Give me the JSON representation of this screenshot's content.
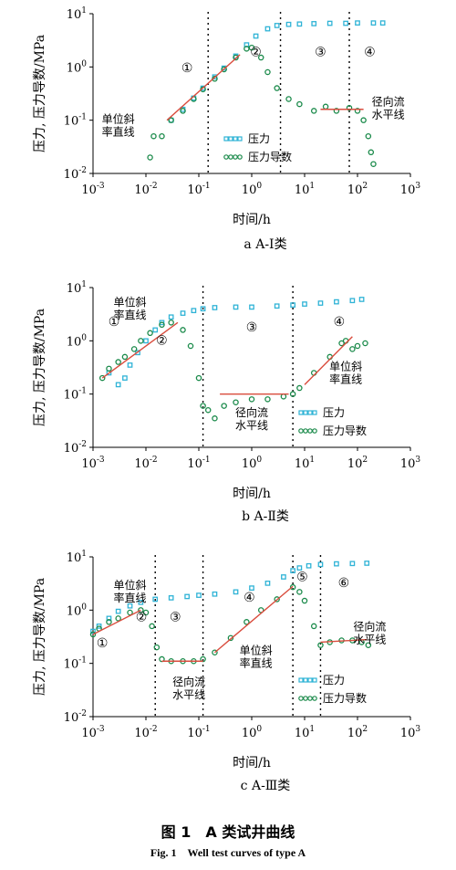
{
  "caption": {
    "zh": "图 1　A 类试井曲线",
    "en": "Fig. 1　Well test curves of type A"
  },
  "colors": {
    "pressure": "#2fb3d6",
    "derivative": "#1a8a4a",
    "fit_line": "#d94c3d",
    "divider": "#000000"
  },
  "chart_data": [
    {
      "type": "scatter",
      "title": "a A-Ⅰ类",
      "xlabel": "时间/h",
      "ylabel": "压力, 压力导数/MPa",
      "xscale": "log",
      "yscale": "log",
      "xlim": [
        0.001,
        1000
      ],
      "ylim": [
        0.01,
        10
      ],
      "xticks": [
        "10-3",
        "10-2",
        "10-1",
        "100",
        "101",
        "102",
        "103"
      ],
      "yticks": [
        "10-2",
        "10-1",
        "100",
        "101"
      ],
      "legend": {
        "position": "center-right",
        "entries": [
          "压力",
          "压力导数"
        ]
      },
      "series": [
        {
          "name": "压力",
          "marker": "square",
          "points": [
            [
              0.03,
              0.1
            ],
            [
              0.05,
              0.16
            ],
            [
              0.08,
              0.26
            ],
            [
              0.12,
              0.4
            ],
            [
              0.2,
              0.65
            ],
            [
              0.3,
              0.95
            ],
            [
              0.5,
              1.6
            ],
            [
              0.8,
              2.6
            ],
            [
              1.2,
              3.8
            ],
            [
              2,
              5.2
            ],
            [
              3,
              6
            ],
            [
              5,
              6.3
            ],
            [
              8,
              6.4
            ],
            [
              15,
              6.5
            ],
            [
              30,
              6.6
            ],
            [
              60,
              6.6
            ],
            [
              100,
              6.7
            ],
            [
              200,
              6.7
            ],
            [
              300,
              6.7
            ]
          ]
        },
        {
          "name": "压力导数",
          "marker": "circle",
          "points": [
            [
              0.012,
              0.02
            ],
            [
              0.014,
              0.05
            ],
            [
              0.02,
              0.05
            ],
            [
              0.03,
              0.1
            ],
            [
              0.05,
              0.15
            ],
            [
              0.08,
              0.25
            ],
            [
              0.12,
              0.38
            ],
            [
              0.2,
              0.6
            ],
            [
              0.3,
              0.9
            ],
            [
              0.5,
              1.5
            ],
            [
              0.8,
              2.2
            ],
            [
              1.0,
              2.3
            ],
            [
              1.5,
              1.5
            ],
            [
              2,
              0.8
            ],
            [
              3,
              0.4
            ],
            [
              5,
              0.25
            ],
            [
              8,
              0.2
            ],
            [
              15,
              0.15
            ],
            [
              25,
              0.18
            ],
            [
              40,
              0.15
            ],
            [
              70,
              0.17
            ],
            [
              100,
              0.15
            ],
            [
              130,
              0.1
            ],
            [
              160,
              0.05
            ],
            [
              180,
              0.025
            ],
            [
              200,
              0.015
            ]
          ]
        }
      ],
      "fit_lines": [
        {
          "points": [
            [
              0.025,
              0.1
            ],
            [
              0.6,
              1.7
            ]
          ]
        },
        {
          "points": [
            [
              20,
              0.16
            ],
            [
              130,
              0.16
            ]
          ]
        }
      ],
      "dividers_x": [
        0.15,
        3.5,
        70
      ],
      "regions": [
        {
          "label": "①",
          "x": 0.06,
          "y": 0.8
        },
        {
          "label": "②",
          "x": 1.2,
          "y": 1.6
        },
        {
          "label": "③",
          "x": 20,
          "y": 1.6
        },
        {
          "label": "④",
          "x": 170,
          "y": 1.6
        }
      ],
      "annotations": [
        {
          "lines": [
            "单位斜",
            "率直线"
          ],
          "x": 0.003,
          "y": 0.09
        },
        {
          "lines": [
            "径向流",
            "水平线"
          ],
          "x": 380,
          "y": 0.19
        }
      ]
    },
    {
      "type": "scatter",
      "title": "b A-Ⅱ类",
      "xlabel": "时间/h",
      "ylabel": "压力, 压力导数/MPa",
      "xscale": "log",
      "yscale": "log",
      "xlim": [
        0.001,
        1000
      ],
      "ylim": [
        0.01,
        10
      ],
      "xticks": [
        "10-3",
        "10-2",
        "10-1",
        "100",
        "101",
        "102",
        "103"
      ],
      "yticks": [
        "10-2",
        "10-1",
        "100",
        "101"
      ],
      "legend": {
        "position": "lower-right",
        "entries": [
          "压力",
          "压力导数"
        ]
      },
      "series": [
        {
          "name": "压力",
          "marker": "square",
          "points": [
            [
              0.002,
              0.25
            ],
            [
              0.003,
              0.15
            ],
            [
              0.004,
              0.2
            ],
            [
              0.005,
              0.35
            ],
            [
              0.007,
              0.6
            ],
            [
              0.01,
              1.0
            ],
            [
              0.015,
              1.6
            ],
            [
              0.02,
              2.2
            ],
            [
              0.03,
              2.8
            ],
            [
              0.05,
              3.3
            ],
            [
              0.08,
              3.7
            ],
            [
              0.12,
              4.0
            ],
            [
              0.2,
              4.2
            ],
            [
              0.5,
              4.3
            ],
            [
              1,
              4.3
            ],
            [
              3,
              4.5
            ],
            [
              6,
              4.7
            ],
            [
              10,
              4.9
            ],
            [
              20,
              5.1
            ],
            [
              40,
              5.4
            ],
            [
              80,
              5.7
            ],
            [
              120,
              6.0
            ]
          ]
        },
        {
          "name": "压力导数",
          "marker": "circle",
          "points": [
            [
              0.0015,
              0.2
            ],
            [
              0.002,
              0.3
            ],
            [
              0.003,
              0.4
            ],
            [
              0.004,
              0.5
            ],
            [
              0.006,
              0.7
            ],
            [
              0.008,
              1.0
            ],
            [
              0.012,
              1.4
            ],
            [
              0.02,
              2.0
            ],
            [
              0.03,
              2.2
            ],
            [
              0.05,
              1.6
            ],
            [
              0.07,
              0.8
            ],
            [
              0.1,
              0.2
            ],
            [
              0.12,
              0.06
            ],
            [
              0.15,
              0.05
            ],
            [
              0.2,
              0.035
            ],
            [
              0.3,
              0.06
            ],
            [
              0.5,
              0.07
            ],
            [
              1,
              0.08
            ],
            [
              2,
              0.08
            ],
            [
              4,
              0.09
            ],
            [
              6,
              0.1
            ],
            [
              8,
              0.13
            ],
            [
              15,
              0.25
            ],
            [
              30,
              0.5
            ],
            [
              50,
              0.9
            ],
            [
              60,
              1.0
            ],
            [
              80,
              0.7
            ],
            [
              100,
              0.8
            ],
            [
              140,
              0.9
            ]
          ]
        }
      ],
      "fit_lines": [
        {
          "points": [
            [
              0.0015,
              0.2
            ],
            [
              0.04,
              2.2
            ]
          ]
        },
        {
          "points": [
            [
              0.25,
              0.1
            ],
            [
              5,
              0.1
            ]
          ]
        },
        {
          "points": [
            [
              10,
              0.15
            ],
            [
              80,
              1.2
            ]
          ]
        }
      ],
      "dividers_x": [
        0.12,
        6
      ],
      "regions": [
        {
          "label": "①",
          "x": 0.0025,
          "y": 1.9
        },
        {
          "label": "②",
          "x": 0.02,
          "y": 0.85
        },
        {
          "label": "③",
          "x": 1.0,
          "y": 1.5
        },
        {
          "label": "④",
          "x": 45,
          "y": 1.9
        }
      ],
      "annotations": [
        {
          "lines": [
            "单位斜",
            "率直线"
          ],
          "x": 0.005,
          "y": 4.5
        },
        {
          "lines": [
            "径向流",
            "水平线"
          ],
          "x": 1.0,
          "y": 0.038
        },
        {
          "lines": [
            "单位斜",
            "率直线"
          ],
          "x": 60,
          "y": 0.28
        }
      ]
    },
    {
      "type": "scatter",
      "title": "c A-Ⅲ类",
      "xlabel": "时间/h",
      "ylabel": "压力, 压力导数/MPa",
      "xscale": "log",
      "yscale": "log",
      "xlim": [
        0.001,
        1000
      ],
      "ylim": [
        0.01,
        10
      ],
      "xticks": [
        "10-3",
        "10-2",
        "10-1",
        "100",
        "101",
        "102",
        "103"
      ],
      "yticks": [
        "10-2",
        "10-1",
        "100",
        "101"
      ],
      "legend": {
        "position": "lower-right",
        "entries": [
          "压力",
          "压力导数"
        ]
      },
      "series": [
        {
          "name": "压力",
          "marker": "square",
          "points": [
            [
              0.001,
              0.4
            ],
            [
              0.0013,
              0.5
            ],
            [
              0.002,
              0.7
            ],
            [
              0.003,
              0.95
            ],
            [
              0.005,
              1.2
            ],
            [
              0.008,
              1.4
            ],
            [
              0.015,
              1.6
            ],
            [
              0.03,
              1.7
            ],
            [
              0.06,
              1.8
            ],
            [
              0.1,
              1.9
            ],
            [
              0.2,
              2.0
            ],
            [
              0.5,
              2.2
            ],
            [
              1,
              2.6
            ],
            [
              2,
              3.2
            ],
            [
              4,
              4.2
            ],
            [
              6,
              5.5
            ],
            [
              8,
              6.2
            ],
            [
              12,
              6.8
            ],
            [
              20,
              7.2
            ],
            [
              40,
              7.4
            ],
            [
              80,
              7.5
            ],
            [
              150,
              7.6
            ]
          ]
        },
        {
          "name": "压力导数",
          "marker": "circle",
          "points": [
            [
              0.001,
              0.35
            ],
            [
              0.0013,
              0.45
            ],
            [
              0.002,
              0.6
            ],
            [
              0.003,
              0.7
            ],
            [
              0.005,
              0.9
            ],
            [
              0.008,
              1.0
            ],
            [
              0.01,
              0.9
            ],
            [
              0.013,
              0.5
            ],
            [
              0.016,
              0.2
            ],
            [
              0.02,
              0.12
            ],
            [
              0.03,
              0.11
            ],
            [
              0.05,
              0.11
            ],
            [
              0.08,
              0.11
            ],
            [
              0.12,
              0.12
            ],
            [
              0.2,
              0.16
            ],
            [
              0.4,
              0.3
            ],
            [
              0.8,
              0.6
            ],
            [
              1.5,
              1.0
            ],
            [
              3,
              1.6
            ],
            [
              6,
              2.7
            ],
            [
              8,
              2.2
            ],
            [
              10,
              1.5
            ],
            [
              15,
              0.5
            ],
            [
              20,
              0.22
            ],
            [
              30,
              0.25
            ],
            [
              50,
              0.27
            ],
            [
              80,
              0.27
            ],
            [
              120,
              0.25
            ],
            [
              160,
              0.22
            ]
          ]
        }
      ],
      "fit_lines": [
        {
          "points": [
            [
              0.001,
              0.35
            ],
            [
              0.008,
              1.0
            ]
          ]
        },
        {
          "points": [
            [
              0.02,
              0.11
            ],
            [
              0.12,
              0.11
            ]
          ]
        },
        {
          "points": [
            [
              0.2,
              0.16
            ],
            [
              6,
              2.8
            ]
          ]
        },
        {
          "points": [
            [
              20,
              0.25
            ],
            [
              150,
              0.28
            ]
          ]
        }
      ],
      "dividers_x": [
        0.015,
        0.12,
        6,
        20
      ],
      "regions": [
        {
          "label": "①",
          "x": 0.0015,
          "y": 0.2
        },
        {
          "label": "②",
          "x": 0.0082,
          "y": 0.62
        },
        {
          "label": "③",
          "x": 0.036,
          "y": 0.62
        },
        {
          "label": "④",
          "x": 0.9,
          "y": 1.45
        },
        {
          "label": "⑤",
          "x": 9,
          "y": 3.5
        },
        {
          "label": "⑥",
          "x": 55,
          "y": 2.7
        }
      ],
      "annotations": [
        {
          "lines": [
            "单位斜",
            "率直线"
          ],
          "x": 0.005,
          "y": 2.5
        },
        {
          "lines": [
            "径向流",
            "水平线"
          ],
          "x": 0.065,
          "y": 0.038
        },
        {
          "lines": [
            "单位斜",
            "率直线"
          ],
          "x": 1.2,
          "y": 0.15
        },
        {
          "lines": [
            "径向流",
            "水平线"
          ],
          "x": 170,
          "y": 0.42
        }
      ]
    }
  ]
}
